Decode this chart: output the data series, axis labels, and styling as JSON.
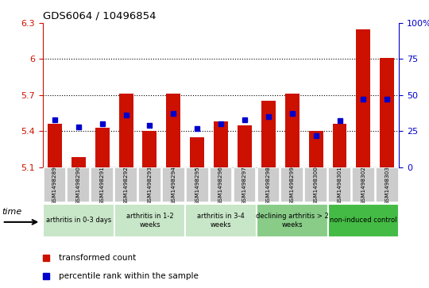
{
  "title": "GDS6064 / 10496854",
  "samples": [
    "GSM1498289",
    "GSM1498290",
    "GSM1498291",
    "GSM1498292",
    "GSM1498293",
    "GSM1498294",
    "GSM1498295",
    "GSM1498296",
    "GSM1498297",
    "GSM1498298",
    "GSM1498299",
    "GSM1498300",
    "GSM1498301",
    "GSM1498302",
    "GSM1498303"
  ],
  "red_values": [
    5.46,
    5.18,
    5.43,
    5.71,
    5.4,
    5.71,
    5.35,
    5.48,
    5.45,
    5.65,
    5.71,
    5.4,
    5.46,
    6.25,
    6.01
  ],
  "blue_values": [
    33,
    28,
    30,
    36,
    29,
    37,
    27,
    30,
    33,
    35,
    37,
    22,
    32,
    47,
    47
  ],
  "ymin": 5.1,
  "ymax": 6.3,
  "y2min": 0,
  "y2max": 100,
  "yticks": [
    5.1,
    5.4,
    5.7,
    6.0,
    6.3
  ],
  "ytick_labels": [
    "5.1",
    "5.4",
    "5.7",
    "6",
    "6.3"
  ],
  "y2ticks": [
    0,
    25,
    50,
    75,
    100
  ],
  "y2tick_labels": [
    "0",
    "25",
    "50",
    "75",
    "100%"
  ],
  "red_color": "#cc1100",
  "blue_color": "#0000cc",
  "bar_width": 0.6,
  "groups": [
    {
      "label": "arthritis in 0-3 days",
      "start": 0,
      "end": 3,
      "color": "#c8e6c8"
    },
    {
      "label": "arthritis in 1-2\nweeks",
      "start": 3,
      "end": 6,
      "color": "#c8e6c8"
    },
    {
      "label": "arthritis in 3-4\nweeks",
      "start": 6,
      "end": 9,
      "color": "#c8e6c8"
    },
    {
      "label": "declining arthritis > 2\nweeks",
      "start": 9,
      "end": 12,
      "color": "#88cc88"
    },
    {
      "label": "non-induced control",
      "start": 12,
      "end": 15,
      "color": "#44bb44"
    }
  ],
  "time_label": "time",
  "legend_red": "transformed count",
  "legend_blue": "percentile rank within the sample",
  "grid_lines": [
    5.4,
    5.7,
    6.0
  ]
}
